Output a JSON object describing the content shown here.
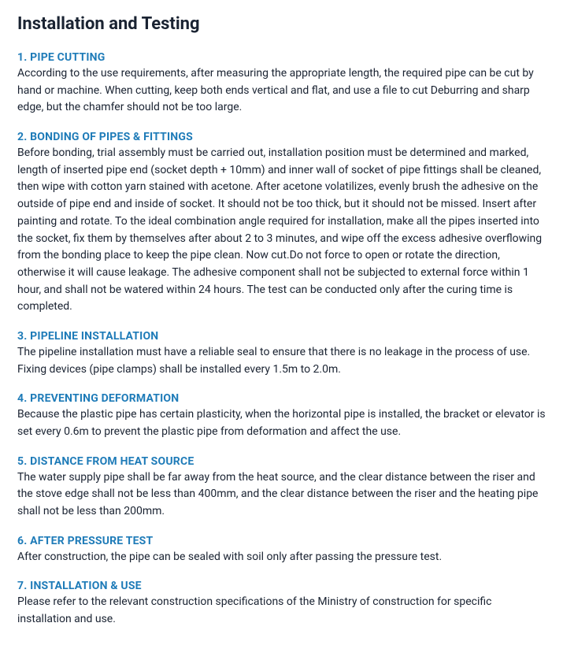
{
  "title": "Installation and Testing",
  "title_color": "#1a2332",
  "title_fontsize": 22,
  "heading_color": "#1e7bb8",
  "heading_fontsize": 14,
  "body_color": "#1a2332",
  "body_fontsize": 14,
  "background_color": "#ffffff",
  "sections": [
    {
      "heading": "1. PIPE CUTTING",
      "body": "According to the use requirements, after measuring the appropriate length, the required pipe can be cut by hand or machine. When cutting, keep both ends vertical and flat, and use a file to cut Deburring and sharp edge, but the chamfer should not be too large."
    },
    {
      "heading": "2. BONDING OF PIPES & FITTINGS",
      "body": "Before bonding, trial assembly must be carried out, installation position must be determined and marked, length of inserted pipe end (socket depth + 10mm) and inner wall of socket of pipe fittings shall be cleaned, then wipe with cotton yarn stained with acetone. After acetone volatilizes, evenly brush the adhesive on the outside of pipe end and inside of socket. It should not be too thick, but it should not be missed. Insert after painting and rotate. To the ideal combination angle required for installation, make all the pipes inserted into the socket, fix them by themselves after about 2 to 3 minutes, and wipe off the excess adhesive overflowing from the bonding place to keep the pipe clean. Now cut.Do not force to open or rotate the direction, otherwise it will cause leakage. The adhesive component shall not be subjected to external force within 1 hour, and shall not be watered within 24 hours. The test can be conducted only after the curing time is completed."
    },
    {
      "heading": "3. PIPELINE INSTALLATION",
      "body": "The pipeline installation must have a reliable seal to ensure that there is no leakage in the process of use. Fixing devices (pipe clamps) shall be installed every 1.5m to 2.0m."
    },
    {
      "heading": "4. PREVENTING DEFORMATION",
      "body": "Because the plastic pipe has certain plasticity, when the horizontal pipe is installed, the bracket or elevator is set every 0.6m to prevent the plastic pipe from deformation and affect the use."
    },
    {
      "heading": "5. DISTANCE FROM HEAT SOURCE",
      "body": "The water supply pipe shall be far away from the heat source, and the clear distance between the riser and the stove edge shall not be less than 400mm, and the clear distance between the riser and the heating pipe shall not be less than 200mm."
    },
    {
      "heading": "6. AFTER PRESSURE TEST",
      "body": "After construction, the pipe can be sealed with soil only after passing the pressure test."
    },
    {
      "heading": "7. INSTALLATION & USE",
      "body": "Please refer to the relevant construction specifications of the Ministry of construction for specific installation and use."
    }
  ]
}
